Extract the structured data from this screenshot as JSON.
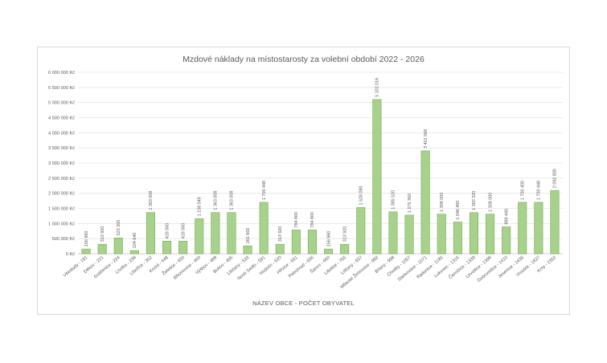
{
  "chart_data": {
    "type": "bar",
    "title": "Mzdové náklady na místostarosty za volební období 2022 - 2026",
    "xlabel": "NÁZEV OBCE - POČET OBYVATEL",
    "ylabel": "",
    "ylim": [
      0,
      6000000
    ],
    "y_ticks": [
      "0 Kč",
      "500 000 Kč",
      "1 000 000 Kč",
      "1 500 000 Kč",
      "2 000 000 Kč",
      "2 500 000 Kč",
      "3 000 000 Kč",
      "3 500 000 Kč",
      "4 000 000 Kč",
      "4 500 000 Kč",
      "5 000 000 Kč",
      "5 500 000 Kč",
      "6 000 000 Kč"
    ],
    "grid": true,
    "legend": "none",
    "bar_color": "#a9d18e",
    "bar_border_color": "#70ad47",
    "categories": [
      "Všestudy - 181",
      "Děkov - 221",
      "Dobřenice - 224",
      "Lhotka - 238",
      "Libořice - 352",
      "Kruzá - 448",
      "Želetice - 450",
      "Březnovice - 460",
      "Výškov - 488",
      "Bukov - 495",
      "Libčany - 533",
      "Nové Sedlo - 591",
      "Hodolín - 620",
      "Hřivice - 651",
      "Petrohrad - 656",
      "Šanov - 660",
      "Lišetice - 765",
      "Lišťany - 937",
      "Mšecké Žehrovice - 982",
      "Bílany - 998",
      "Chotiky - 1057",
      "Starkováce - 1071",
      "Radonice - 1185",
      "Lukovec - 1316",
      "Černíčice - 1339",
      "Levošice - 1398",
      "Dobromilice - 1410",
      "Jesenice - 1635",
      "Vroutek - 1827",
      "Krsy - 2352"
    ],
    "values": [
      156960,
      313920,
      523200,
      104640,
      1363008,
      418560,
      418560,
      1158048,
      1363008,
      1363008,
      261600,
      1700448,
      313920,
      784800,
      784800,
      156960,
      313920,
      1528080,
      5102016,
      1385520,
      1275360,
      3401568,
      1308000,
      1046400,
      1360320,
      1308000,
      889440,
      1700400,
      1700448,
      2092800
    ],
    "data_labels": [
      "156 960",
      "313 920",
      "523 200",
      "104 640",
      "1 363 008",
      "418 560",
      "418 560",
      "1 158 048",
      "1 363 008",
      "1 363 008",
      "261 600",
      "1 700 448",
      "313 920",
      "784 800",
      "784 800",
      "156 960",
      "313 920",
      "1 528 080",
      "5 102 016",
      "1 385 520",
      "1 275 360",
      "3 401 568",
      "1 308 000",
      "1 046 400",
      "1 360 320",
      "1 308 000",
      "889 440",
      "1 700 400",
      "1 700 448",
      "2 092 800"
    ]
  }
}
